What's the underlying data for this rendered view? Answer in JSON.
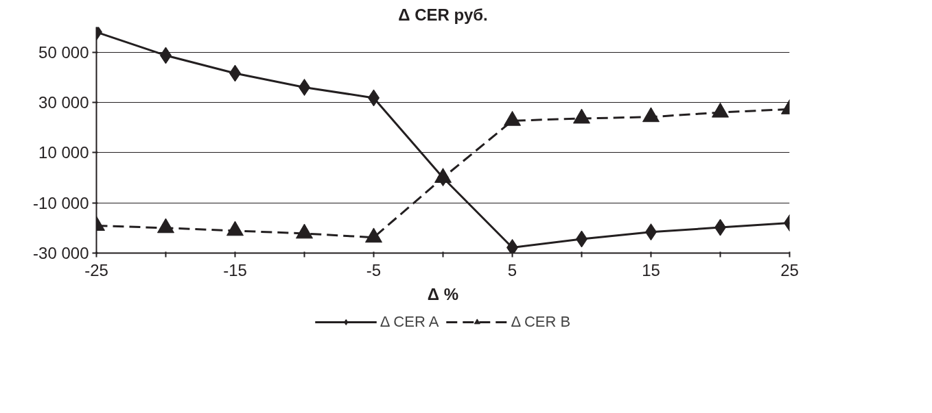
{
  "chart_data": {
    "type": "line",
    "xlabel": "Δ %",
    "ylabel": "Δ CER руб.",
    "x": [
      -25,
      -20,
      -15,
      -10,
      -5,
      0,
      5,
      10,
      15,
      20,
      25
    ],
    "series": [
      {
        "name": "Δ CER A",
        "color": "#231f20",
        "marker": "diamond",
        "line_style": "solid",
        "values": [
          58000,
          48700,
          41600,
          36000,
          31800,
          0,
          -27800,
          -24400,
          -21600,
          -19800,
          -18000
        ]
      },
      {
        "name": "Δ CER B",
        "color": "#231f20",
        "marker": "triangle",
        "line_style": "dashed",
        "values": [
          -19100,
          -20000,
          -21100,
          -22200,
          -23800,
          0,
          22700,
          23600,
          24200,
          26000,
          27300
        ]
      }
    ],
    "xlim": [
      -25,
      25
    ],
    "ylim": [
      -30000,
      60000
    ],
    "xticks": [
      -25,
      {
        "value": -20,
        "label": null
      },
      -15,
      {
        "value": -10,
        "label": null
      },
      -5,
      {
        "value": 0,
        "label": null
      },
      5,
      {
        "value": 10,
        "label": null
      },
      15,
      {
        "value": 20,
        "label": null
      },
      25
    ],
    "yticks": [
      {
        "value": -30000,
        "label": "-30 000"
      },
      {
        "value": -10000,
        "label": "-10 000"
      },
      {
        "value": 10000,
        "label": "10 000"
      },
      {
        "value": 30000,
        "label": "30 000"
      },
      {
        "value": 50000,
        "label": "50 000"
      }
    ],
    "grid": "y",
    "legend": "bottom"
  }
}
